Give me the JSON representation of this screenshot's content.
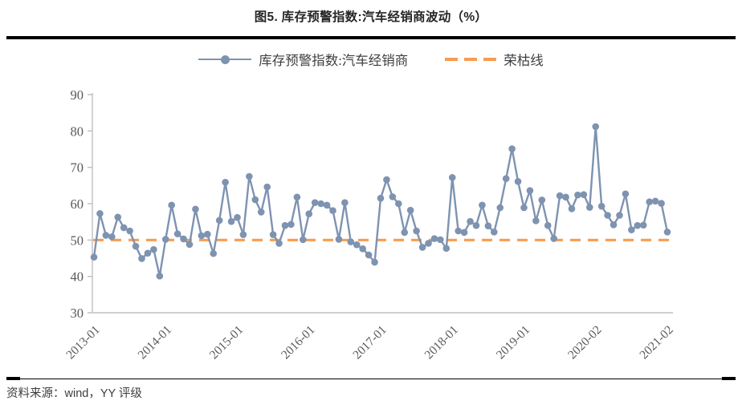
{
  "title": "图5. 库存预警指数:汽车经销商波动（%）",
  "legend": {
    "series_label": "库存预警指数:汽车经销商",
    "benchmark_label": "荣枯线"
  },
  "source_note": "资料来源：wind，YY 评级",
  "colors": {
    "series": "#7E93B0",
    "benchmark": "#F89C52",
    "axis_line": "#BFBFBF",
    "tick_text": "#595959",
    "title_text": "#262626"
  },
  "chart_data": {
    "type": "line",
    "title": "图5. 库存预警指数:汽车经销商波动（%）",
    "xlabel": "",
    "ylabel": "",
    "ylim": [
      30,
      90
    ],
    "y_ticks": [
      30,
      40,
      50,
      60,
      70,
      80,
      90
    ],
    "grid": false,
    "legend_position": "top",
    "x": [
      "2013-01",
      "2013-02",
      "2013-03",
      "2013-04",
      "2013-05",
      "2013-06",
      "2013-07",
      "2013-08",
      "2013-09",
      "2013-10",
      "2013-11",
      "2013-12",
      "2014-01",
      "2014-02",
      "2014-03",
      "2014-04",
      "2014-05",
      "2014-06",
      "2014-07",
      "2014-08",
      "2014-09",
      "2014-10",
      "2014-11",
      "2014-12",
      "2015-01",
      "2015-02",
      "2015-03",
      "2015-04",
      "2015-05",
      "2015-06",
      "2015-07",
      "2015-08",
      "2015-09",
      "2015-10",
      "2015-11",
      "2015-12",
      "2016-01",
      "2016-02",
      "2016-03",
      "2016-04",
      "2016-05",
      "2016-06",
      "2016-07",
      "2016-08",
      "2016-09",
      "2016-10",
      "2016-11",
      "2016-12",
      "2017-01",
      "2017-02",
      "2017-03",
      "2017-04",
      "2017-05",
      "2017-06",
      "2017-07",
      "2017-08",
      "2017-09",
      "2017-10",
      "2017-11",
      "2017-12",
      "2018-01",
      "2018-02",
      "2018-03",
      "2018-04",
      "2018-05",
      "2018-06",
      "2018-07",
      "2018-08",
      "2018-09",
      "2018-10",
      "2018-11",
      "2018-12",
      "2019-01",
      "2019-02",
      "2019-03",
      "2019-04",
      "2019-05",
      "2019-06",
      "2019-07",
      "2019-08",
      "2019-09",
      "2019-10",
      "2019-11",
      "2019-12",
      "2020-02",
      "2020-03",
      "2020-04",
      "2020-05",
      "2020-06",
      "2020-07",
      "2020-08",
      "2020-09",
      "2020-10",
      "2020-11",
      "2020-12",
      "2021-01",
      "2021-02"
    ],
    "x_ticks": [
      {
        "index": 0,
        "label": "2013-01"
      },
      {
        "index": 12,
        "label": "2014-01"
      },
      {
        "index": 24,
        "label": "2015-01"
      },
      {
        "index": 36,
        "label": "2016-01"
      },
      {
        "index": 48,
        "label": "2017-01"
      },
      {
        "index": 60,
        "label": "2018-01"
      },
      {
        "index": 72,
        "label": "2019-01"
      },
      {
        "index": 84,
        "label": "2020-02"
      },
      {
        "index": 96,
        "label": "2021-02"
      }
    ],
    "series": [
      {
        "name": "库存预警指数:汽车经销商",
        "style": "solid-with-markers",
        "color": "#7E93B0",
        "values": [
          45.3,
          57.3,
          51.3,
          50.9,
          56.3,
          53.4,
          52.5,
          48.3,
          44.9,
          46.4,
          47.4,
          40.1,
          50.2,
          59.6,
          51.7,
          50.3,
          48.8,
          58.5,
          51.2,
          51.6,
          46.3,
          55.4,
          65.9,
          55.1,
          56.2,
          51.5,
          67.5,
          61.1,
          57.7,
          64.6,
          51.5,
          49.1,
          54.0,
          54.3,
          61.8,
          50.1,
          57.2,
          60.3,
          60.0,
          59.6,
          58.1,
          50.2,
          60.3,
          49.5,
          48.7,
          47.6,
          45.9,
          43.9,
          61.5,
          66.6,
          61.9,
          60.0,
          52.1,
          58.2,
          52.5,
          48.0,
          49.1,
          50.4,
          50.1,
          47.7,
          67.2,
          52.5,
          52.1,
          55.1,
          54.0,
          59.6,
          53.9,
          52.2,
          58.9,
          66.9,
          75.1,
          66.1,
          58.9,
          63.6,
          55.3,
          61.0,
          54.0,
          50.4,
          62.2,
          61.8,
          58.6,
          62.4,
          62.5,
          59.0,
          81.2,
          59.3,
          56.8,
          54.2,
          56.8,
          62.7,
          52.8,
          54.0,
          54.1,
          60.5,
          60.7,
          60.1,
          52.2
        ]
      },
      {
        "name": "荣枯线",
        "style": "dashed-constant",
        "color": "#F89C52",
        "value": 50
      }
    ]
  }
}
